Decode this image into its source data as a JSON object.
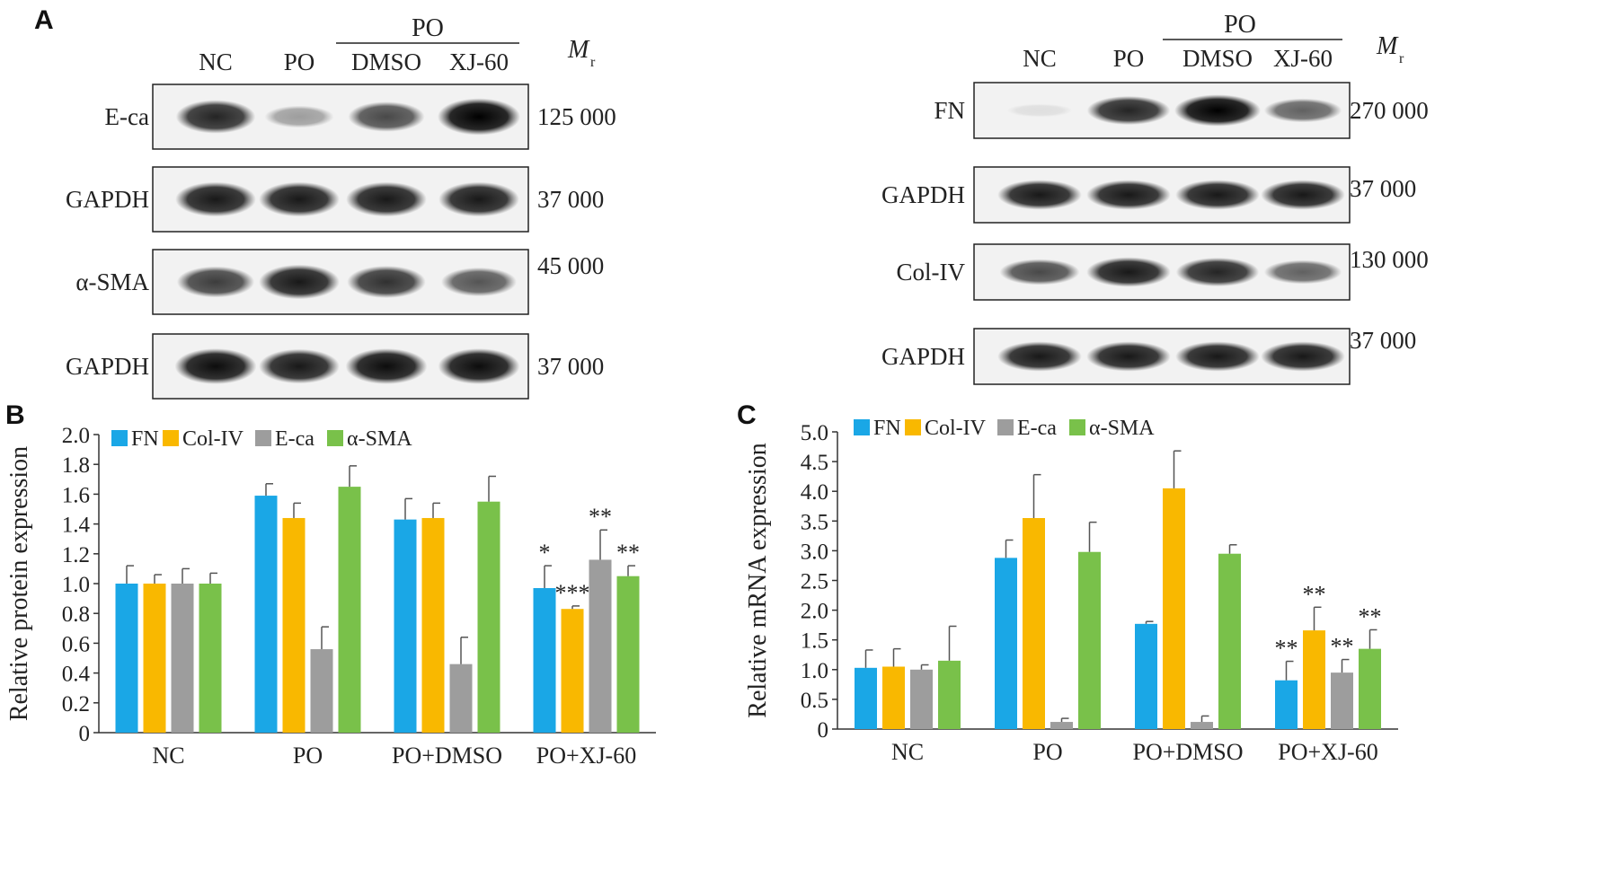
{
  "panel_labels": {
    "a": "A",
    "b": "B",
    "c": "C"
  },
  "blot_left": {
    "group_label": "PO",
    "lanes": [
      "NC",
      "PO",
      "DMSO",
      "XJ-60"
    ],
    "mr_symbol": "M",
    "mr_sub": "r",
    "rows": [
      {
        "name": "E-ca",
        "mr": "125 000",
        "intensity": [
          0.85,
          0.35,
          0.7,
          1.0
        ]
      },
      {
        "name": "GAPDH",
        "mr": "37 000",
        "intensity": [
          0.9,
          0.9,
          0.9,
          0.9
        ]
      },
      {
        "name": "α-SMA",
        "mr": "45 000",
        "intensity": [
          0.75,
          0.9,
          0.8,
          0.65
        ]
      },
      {
        "name": "GAPDH",
        "mr": "37 000",
        "intensity": [
          0.95,
          0.9,
          0.95,
          0.95
        ]
      }
    ]
  },
  "blot_right": {
    "group_label": "PO",
    "lanes": [
      "NC",
      "PO",
      "DMSO",
      "XJ-60"
    ],
    "mr_symbol": "M",
    "mr_sub": "r",
    "rows": [
      {
        "name": "FN",
        "mr": "270 000",
        "intensity": [
          0.05,
          0.85,
          1.0,
          0.6
        ]
      },
      {
        "name": "GAPDH",
        "mr": "37 000",
        "intensity": [
          0.9,
          0.9,
          0.9,
          0.9
        ]
      },
      {
        "name": "Col-IV",
        "mr": "130 000",
        "intensity": [
          0.7,
          0.9,
          0.85,
          0.6
        ]
      },
      {
        "name": "GAPDH",
        "mr": "37 000",
        "intensity": [
          0.9,
          0.9,
          0.9,
          0.9
        ]
      }
    ]
  },
  "colors": {
    "FN": "#1aa7e6",
    "Col-IV": "#f9b800",
    "E-ca": "#9d9d9d",
    "α-SMA": "#79c14a"
  },
  "chart_data": [
    {
      "type": "bar",
      "panel": "B",
      "title": "",
      "ylabel": "Relative protein expression",
      "xlabel": "",
      "ylim": [
        0,
        2.0
      ],
      "yticks": [
        "0",
        "0.2",
        "0.4",
        "0.6",
        "0.8",
        "1.0",
        "1.2",
        "1.4",
        "1.6",
        "1.8",
        "2.0"
      ],
      "categories": [
        "NC",
        "PO",
        "PO+DMSO",
        "PO+XJ-60"
      ],
      "legend_position": "top-left",
      "series": [
        {
          "name": "FN",
          "values": [
            1.0,
            1.59,
            1.43,
            0.97
          ],
          "errors": [
            0.12,
            0.08,
            0.14,
            0.15
          ],
          "sig": [
            "",
            "",
            "",
            "*"
          ]
        },
        {
          "name": "Col-IV",
          "values": [
            1.0,
            1.44,
            1.44,
            0.83
          ],
          "errors": [
            0.06,
            0.1,
            0.1,
            0.02
          ],
          "sig": [
            "",
            "",
            "",
            "***"
          ]
        },
        {
          "name": "E-ca",
          "values": [
            1.0,
            0.56,
            0.46,
            1.16
          ],
          "errors": [
            0.1,
            0.15,
            0.18,
            0.2
          ],
          "sig": [
            "",
            "",
            "",
            "**"
          ]
        },
        {
          "name": "α-SMA",
          "values": [
            1.0,
            1.65,
            1.55,
            1.05
          ],
          "errors": [
            0.07,
            0.14,
            0.17,
            0.07
          ],
          "sig": [
            "",
            "",
            "",
            "**"
          ]
        }
      ]
    },
    {
      "type": "bar",
      "panel": "C",
      "title": "",
      "ylabel": "Relative mRNA expression",
      "xlabel": "",
      "ylim": [
        0,
        5.0
      ],
      "yticks": [
        "0",
        "0.5",
        "1.0",
        "1.5",
        "2.0",
        "2.5",
        "3.0",
        "3.5",
        "4.0",
        "4.5",
        "5.0"
      ],
      "categories": [
        "NC",
        "PO",
        "PO+DMSO",
        "PO+XJ-60"
      ],
      "legend_position": "top-left",
      "series": [
        {
          "name": "FN",
          "values": [
            1.03,
            2.88,
            1.77,
            0.82
          ],
          "errors": [
            0.3,
            0.3,
            0.04,
            0.32
          ],
          "sig": [
            "",
            "",
            "",
            "**"
          ]
        },
        {
          "name": "Col-IV",
          "values": [
            1.05,
            3.55,
            4.05,
            1.66
          ],
          "errors": [
            0.3,
            0.73,
            0.63,
            0.39
          ],
          "sig": [
            "",
            "",
            "",
            "**"
          ]
        },
        {
          "name": "E-ca",
          "values": [
            1.0,
            0.12,
            0.12,
            0.95
          ],
          "errors": [
            0.08,
            0.06,
            0.1,
            0.22
          ],
          "sig": [
            "",
            "",
            "",
            "**"
          ]
        },
        {
          "name": "α-SMA",
          "values": [
            1.15,
            2.98,
            2.95,
            1.35
          ],
          "errors": [
            0.58,
            0.5,
            0.15,
            0.32
          ],
          "sig": [
            "",
            "",
            "",
            "**"
          ]
        }
      ]
    }
  ]
}
